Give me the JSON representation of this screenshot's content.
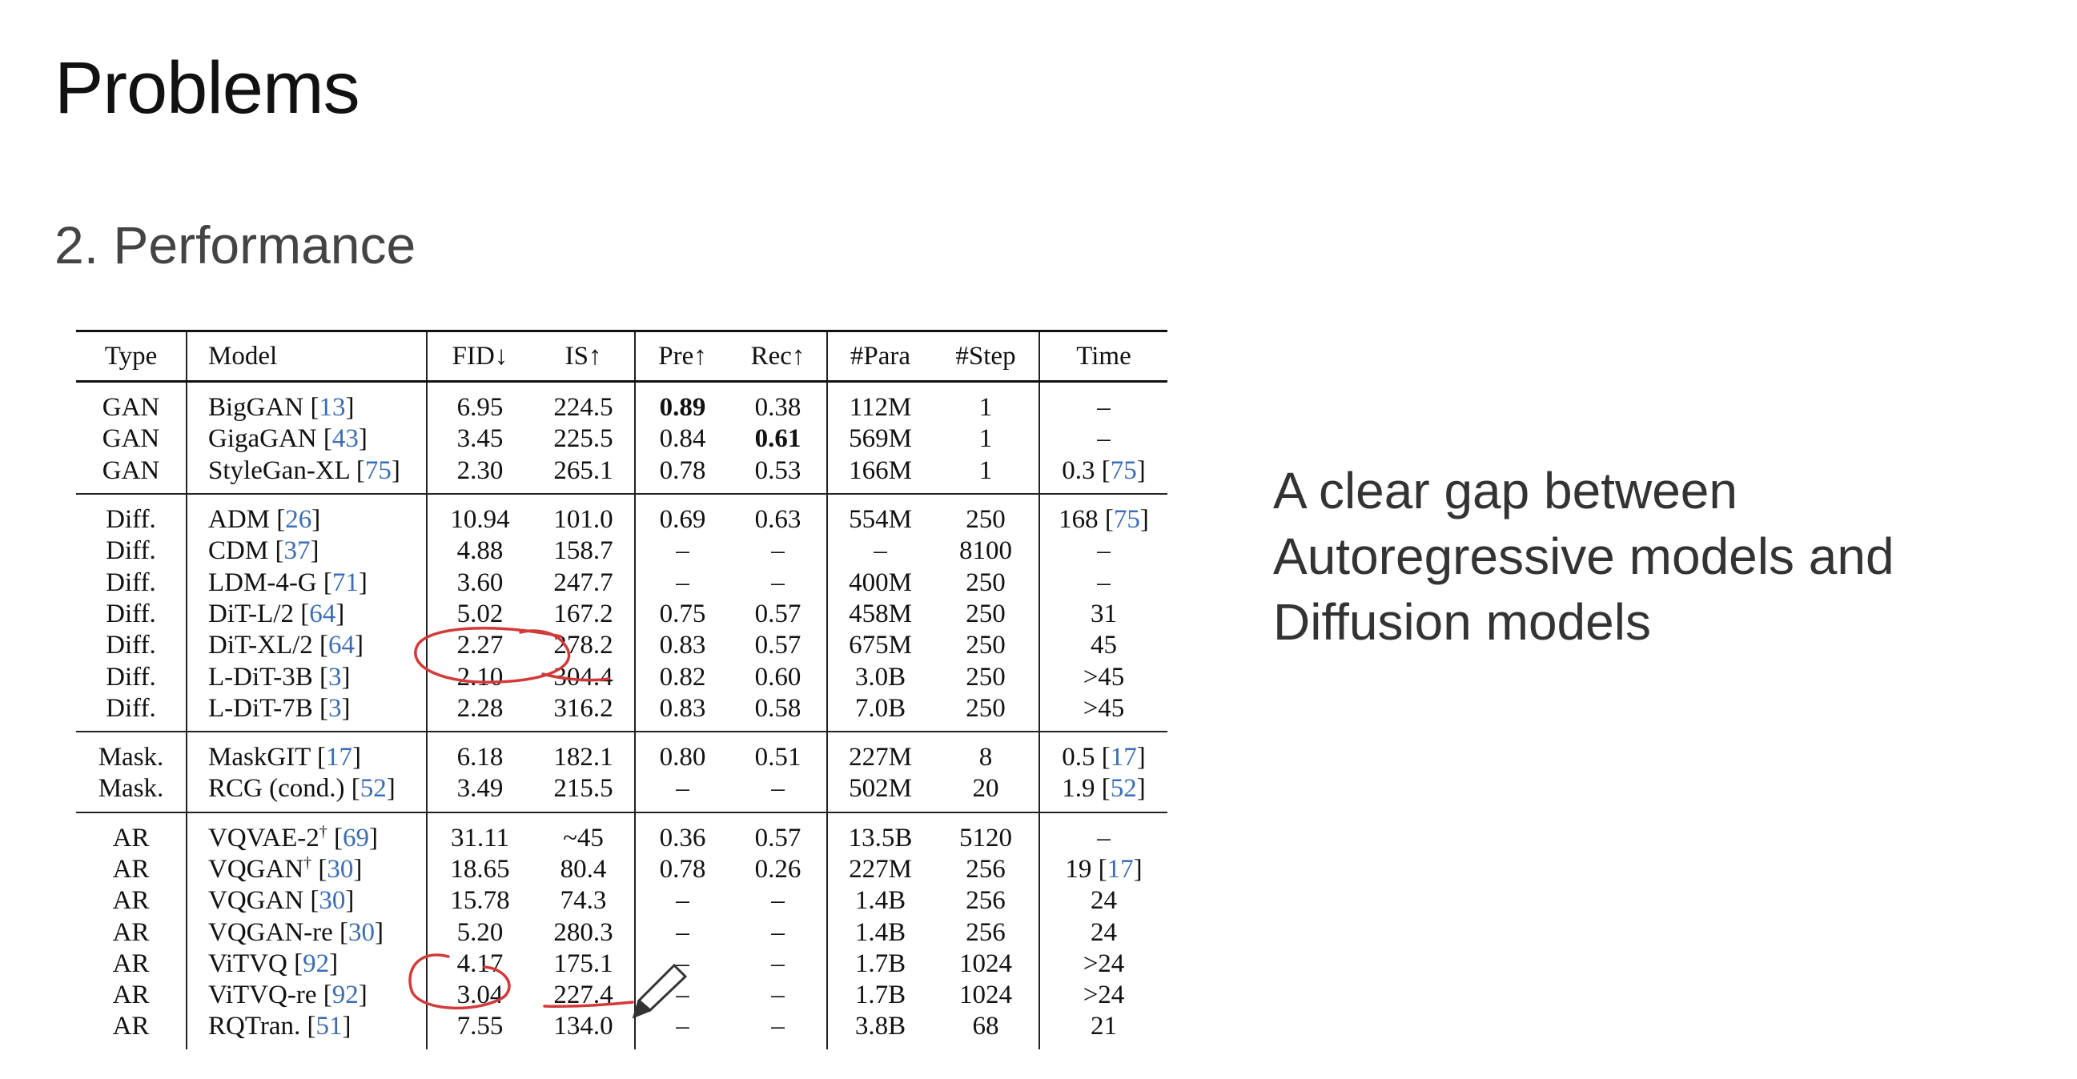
{
  "slide": {
    "title": "Problems",
    "subtitle": "2. Performance",
    "note_lines": [
      "A clear gap between",
      "Autoregressive models and",
      "Diffusion models"
    ],
    "annotation_color": "#d23a3a",
    "link_color": "#3a6db3"
  },
  "table": {
    "headers": [
      "Type",
      "Model",
      "FID↓",
      "IS↑",
      "Pre↑",
      "Rec↑",
      "#Para",
      "#Step",
      "Time"
    ],
    "groups": [
      {
        "type": "GAN",
        "rows": [
          {
            "type": "GAN",
            "model": "BigGAN",
            "model_sup": "",
            "model_ref": "13",
            "fid": "6.95",
            "is": "224.5",
            "pre": "0.89",
            "rec": "0.38",
            "para": "112M",
            "step": "1",
            "time": "–",
            "time_ref": "",
            "bold": [
              "pre"
            ]
          },
          {
            "type": "GAN",
            "model": "GigaGAN",
            "model_sup": "",
            "model_ref": "43",
            "fid": "3.45",
            "is": "225.5",
            "pre": "0.84",
            "rec": "0.61",
            "para": "569M",
            "step": "1",
            "time": "–",
            "time_ref": "",
            "bold": [
              "rec"
            ]
          },
          {
            "type": "GAN",
            "model": "StyleGan-XL",
            "model_sup": "",
            "model_ref": "75",
            "fid": "2.30",
            "is": "265.1",
            "pre": "0.78",
            "rec": "0.53",
            "para": "166M",
            "step": "1",
            "time": "0.3",
            "time_ref": "75",
            "bold": []
          }
        ]
      },
      {
        "type": "Diff.",
        "rows": [
          {
            "type": "Diff.",
            "model": "ADM",
            "model_sup": "",
            "model_ref": "26",
            "fid": "10.94",
            "is": "101.0",
            "pre": "0.69",
            "rec": "0.63",
            "para": "554M",
            "step": "250",
            "time": "168",
            "time_ref": "75",
            "bold": []
          },
          {
            "type": "Diff.",
            "model": "CDM",
            "model_sup": "",
            "model_ref": "37",
            "fid": "4.88",
            "is": "158.7",
            "pre": "–",
            "rec": "–",
            "para": "–",
            "step": "8100",
            "time": "–",
            "time_ref": "",
            "bold": []
          },
          {
            "type": "Diff.",
            "model": "LDM-4-G",
            "model_sup": "",
            "model_ref": "71",
            "fid": "3.60",
            "is": "247.7",
            "pre": "–",
            "rec": "–",
            "para": "400M",
            "step": "250",
            "time": "–",
            "time_ref": "",
            "bold": []
          },
          {
            "type": "Diff.",
            "model": "DiT-L/2",
            "model_sup": "",
            "model_ref": "64",
            "fid": "5.02",
            "is": "167.2",
            "pre": "0.75",
            "rec": "0.57",
            "para": "458M",
            "step": "250",
            "time": "31",
            "time_ref": "",
            "bold": []
          },
          {
            "type": "Diff.",
            "model": "DiT-XL/2",
            "model_sup": "",
            "model_ref": "64",
            "fid": "2.27",
            "is": "278.2",
            "pre": "0.83",
            "rec": "0.57",
            "para": "675M",
            "step": "250",
            "time": "45",
            "time_ref": "",
            "bold": []
          },
          {
            "type": "Diff.",
            "model": "L-DiT-3B",
            "model_sup": "",
            "model_ref": "3",
            "fid": "2.10",
            "is": "304.4",
            "pre": "0.82",
            "rec": "0.60",
            "para": "3.0B",
            "step": "250",
            "time": ">45",
            "time_ref": "",
            "bold": []
          },
          {
            "type": "Diff.",
            "model": "L-DiT-7B",
            "model_sup": "",
            "model_ref": "3",
            "fid": "2.28",
            "is": "316.2",
            "pre": "0.83",
            "rec": "0.58",
            "para": "7.0B",
            "step": "250",
            "time": ">45",
            "time_ref": "",
            "bold": []
          }
        ]
      },
      {
        "type": "Mask.",
        "rows": [
          {
            "type": "Mask.",
            "model": "MaskGIT",
            "model_sup": "",
            "model_ref": "17",
            "fid": "6.18",
            "is": "182.1",
            "pre": "0.80",
            "rec": "0.51",
            "para": "227M",
            "step": "8",
            "time": "0.5",
            "time_ref": "17",
            "bold": []
          },
          {
            "type": "Mask.",
            "model": "RCG (cond.)",
            "model_sup": "",
            "model_ref": "52",
            "fid": "3.49",
            "is": "215.5",
            "pre": "–",
            "rec": "–",
            "para": "502M",
            "step": "20",
            "time": "1.9",
            "time_ref": "52",
            "bold": []
          }
        ]
      },
      {
        "type": "AR",
        "rows": [
          {
            "type": "AR",
            "model": "VQVAE-2",
            "model_sup": "†",
            "model_ref": "69",
            "fid": "31.11",
            "is": "~45",
            "pre": "0.36",
            "rec": "0.57",
            "para": "13.5B",
            "step": "5120",
            "time": "–",
            "time_ref": "",
            "bold": []
          },
          {
            "type": "AR",
            "model": "VQGAN",
            "model_sup": "†",
            "model_ref": "30",
            "fid": "18.65",
            "is": "80.4",
            "pre": "0.78",
            "rec": "0.26",
            "para": "227M",
            "step": "256",
            "time": "19",
            "time_ref": "17",
            "bold": []
          },
          {
            "type": "AR",
            "model": "VQGAN",
            "model_sup": "",
            "model_ref": "30",
            "fid": "15.78",
            "is": "74.3",
            "pre": "–",
            "rec": "–",
            "para": "1.4B",
            "step": "256",
            "time": "24",
            "time_ref": "",
            "bold": []
          },
          {
            "type": "AR",
            "model": "VQGAN-re",
            "model_sup": "",
            "model_ref": "30",
            "fid": "5.20",
            "is": "280.3",
            "pre": "–",
            "rec": "–",
            "para": "1.4B",
            "step": "256",
            "time": "24",
            "time_ref": "",
            "bold": []
          },
          {
            "type": "AR",
            "model": "ViTVQ",
            "model_sup": "",
            "model_ref": "92",
            "fid": "4.17",
            "is": "175.1",
            "pre": "–",
            "rec": "–",
            "para": "1.7B",
            "step": "1024",
            "time": ">24",
            "time_ref": "",
            "bold": []
          },
          {
            "type": "AR",
            "model": "ViTVQ-re",
            "model_sup": "",
            "model_ref": "92",
            "fid": "3.04",
            "is": "227.4",
            "pre": "–",
            "rec": "–",
            "para": "1.7B",
            "step": "1024",
            "time": ">24",
            "time_ref": "",
            "bold": []
          },
          {
            "type": "AR",
            "model": "RQTran.",
            "model_sup": "",
            "model_ref": "51",
            "fid": "7.55",
            "is": "134.0",
            "pre": "–",
            "rec": "–",
            "para": "3.8B",
            "step": "68",
            "time": "21",
            "time_ref": "",
            "bold": []
          }
        ]
      }
    ]
  },
  "annotations": {
    "pen_cursor_icon": "pen-icon"
  }
}
